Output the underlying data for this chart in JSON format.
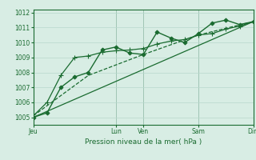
{
  "title": "",
  "xlabel": "Pression niveau de la mer( hPa )",
  "ylabel": "",
  "background_color": "#d8ede4",
  "plot_bg_color": "#d8ede4",
  "grid_color": "#b8d8cc",
  "line_color": "#1a6b30",
  "vline_color": "#6a9a80",
  "ylim": [
    1004.5,
    1012.2
  ],
  "xlim": [
    0,
    96
  ],
  "yticks": [
    1005,
    1006,
    1007,
    1008,
    1009,
    1010,
    1011,
    1012
  ],
  "xtick_positions": [
    0,
    36,
    48,
    72,
    96
  ],
  "xtick_labels": [
    "Jeu",
    "Lun",
    "Ven",
    "Sam",
    "Dim"
  ],
  "vlines": [
    0,
    36,
    48,
    72,
    96
  ],
  "series": [
    {
      "x": [
        0,
        6,
        12,
        18,
        24,
        30,
        36,
        42,
        48,
        54,
        60,
        66,
        72,
        78,
        84,
        90,
        96
      ],
      "y": [
        1005.0,
        1005.3,
        1007.0,
        1007.7,
        1008.0,
        1009.5,
        1009.7,
        1009.3,
        1009.2,
        1010.7,
        1010.3,
        1010.0,
        1010.6,
        1011.3,
        1011.5,
        1011.2,
        1011.4
      ],
      "style": "-",
      "marker": "D",
      "markersize": 2.5,
      "lw": 1.0
    },
    {
      "x": [
        0,
        6,
        12,
        18,
        24,
        30,
        36,
        42,
        48,
        54,
        60,
        66,
        72,
        78,
        84,
        90,
        96
      ],
      "y": [
        1005.1,
        1006.0,
        1007.8,
        1009.0,
        1009.1,
        1009.35,
        1009.45,
        1009.5,
        1009.6,
        1009.9,
        1010.1,
        1010.2,
        1010.5,
        1010.6,
        1010.9,
        1011.1,
        1011.4
      ],
      "style": "-",
      "marker": "+",
      "markersize": 4,
      "lw": 0.9
    },
    {
      "x": [
        0,
        24,
        48,
        72,
        96
      ],
      "y": [
        1005.1,
        1007.8,
        1009.2,
        1010.5,
        1011.4
      ],
      "style": "--",
      "marker": null,
      "markersize": 0,
      "lw": 0.9
    },
    {
      "x": [
        0,
        96
      ],
      "y": [
        1005.0,
        1011.4
      ],
      "style": "-",
      "marker": null,
      "markersize": 0,
      "lw": 0.9
    }
  ]
}
